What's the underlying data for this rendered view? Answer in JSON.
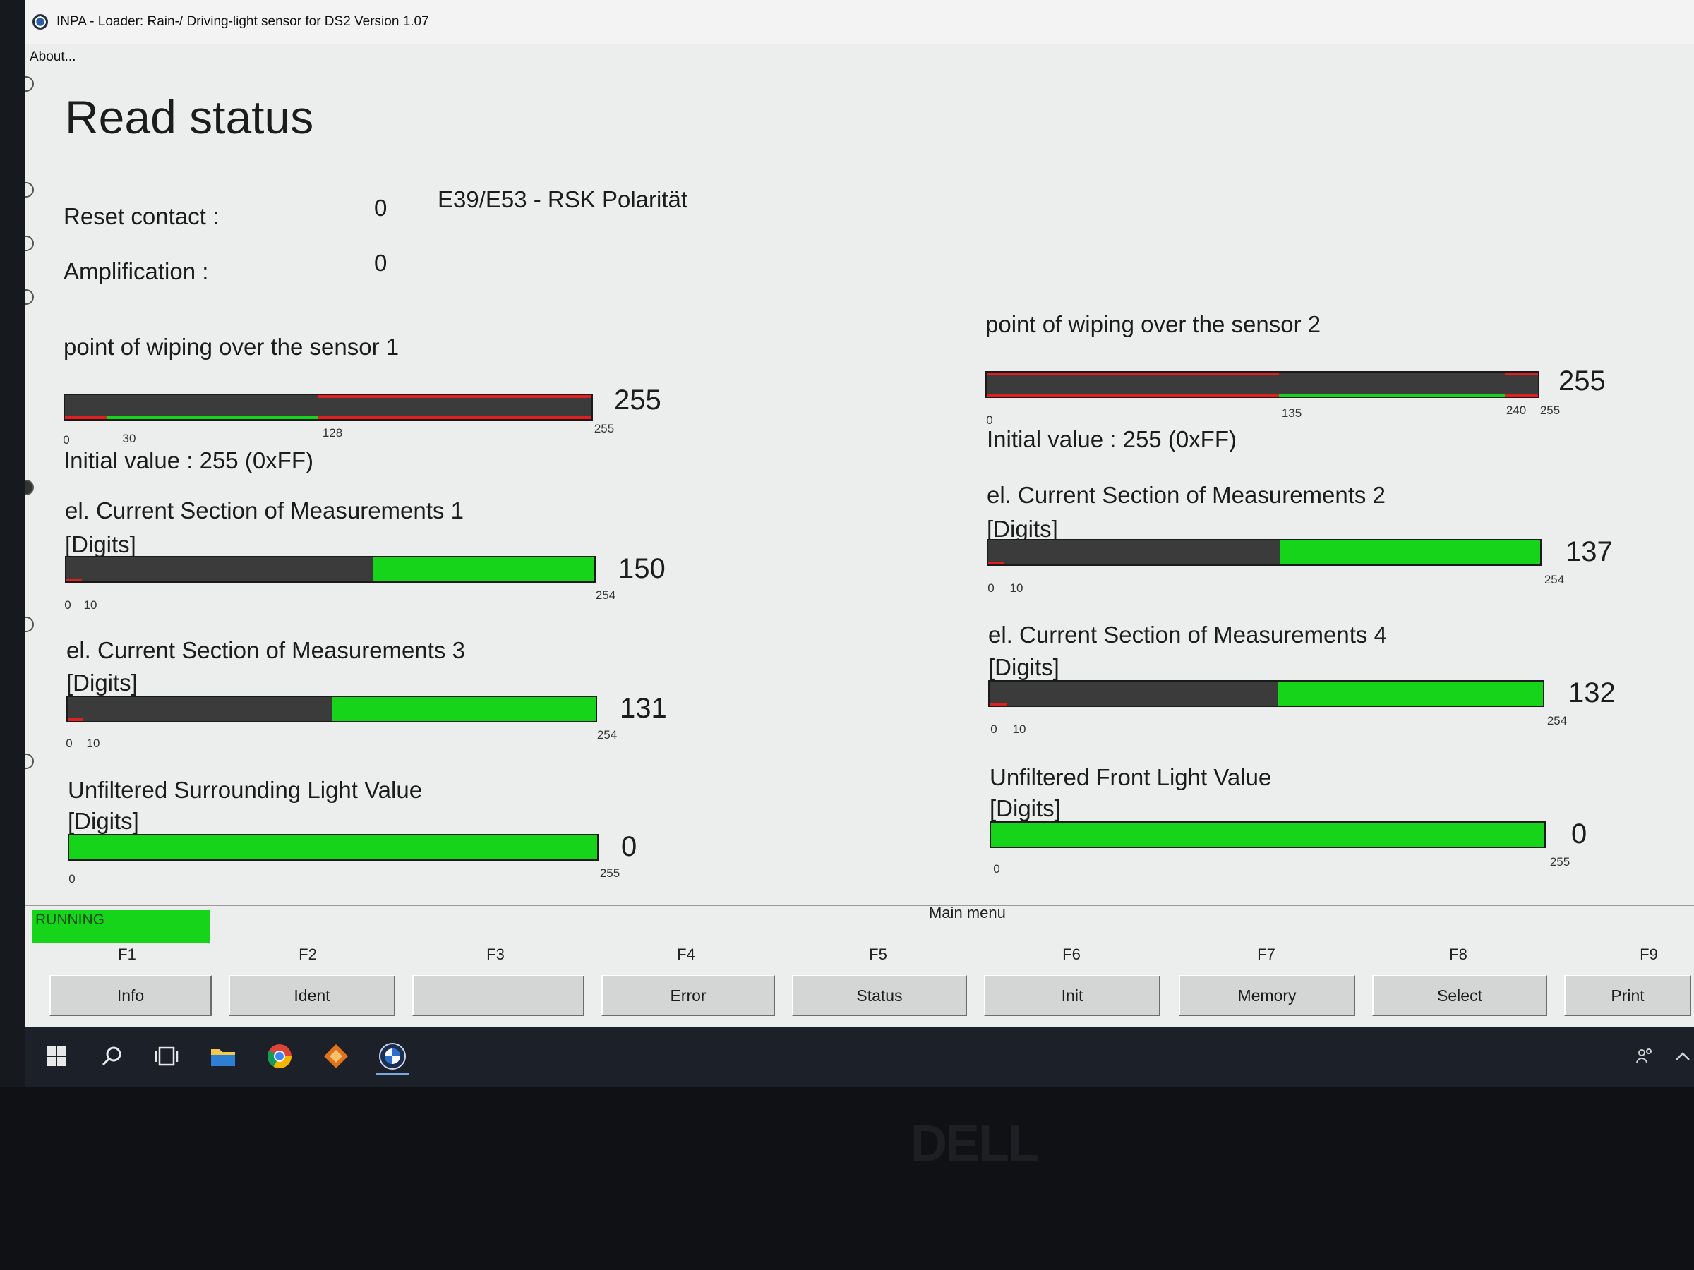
{
  "window": {
    "title": "INPA - Loader:  Rain-/ Driving-light sensor for DS2 Version 1.07",
    "menu": "About...",
    "heading": "Read status"
  },
  "status_fields": {
    "reset_label": "Reset contact :",
    "reset_value": "0",
    "reset_note": "E39/E53 - RSK Polarität",
    "amp_label": "Amplification :",
    "amp_value": "0"
  },
  "gauges": {
    "wiping1": {
      "title": "point of wiping over the sensor 1",
      "value": "255",
      "level": 1.0,
      "min_label": "0",
      "mark1": "30",
      "mark2": "128",
      "max_label": "255",
      "initial": "Initial value : 255 (0xFF)"
    },
    "wiping2": {
      "title": "point of wiping over the sensor 2",
      "value": "255",
      "level": 1.0,
      "min_label": "0",
      "mark1": "135",
      "mark2": "240",
      "max_label": "255",
      "initial": "Initial value : 255 (0xFF)"
    },
    "current1": {
      "title": "el. Current Section of Measurements 1",
      "unit": "[Digits]",
      "value": "150",
      "level": 0.58,
      "min_label": "0",
      "mark1": "10",
      "max_label": "254"
    },
    "current2": {
      "title": "el. Current Section of Measurements 2",
      "unit": "[Digits]",
      "value": "137",
      "level": 0.53,
      "min_label": "0",
      "mark1": "10",
      "max_label": "254"
    },
    "current3": {
      "title": "el. Current Section of Measurements 3",
      "unit": "[Digits]",
      "value": "131",
      "level": 0.5,
      "min_label": "0",
      "mark1": "10",
      "max_label": "254"
    },
    "current4": {
      "title": "el. Current Section of Measurements 4",
      "unit": "[Digits]",
      "value": "132",
      "level": 0.52,
      "min_label": "0",
      "mark1": "10",
      "max_label": "254"
    },
    "surround": {
      "title": "Unfiltered Surrounding Light Value",
      "unit": "[Digits]",
      "value": "0",
      "min_label": "0",
      "max_label": "255"
    },
    "front": {
      "title": "Unfiltered Front Light Value",
      "unit": "[Digits]",
      "value": "0",
      "min_label": "0",
      "max_label": "255"
    }
  },
  "statusbar": {
    "running": "RUNNING",
    "main_menu": "Main menu"
  },
  "fkeys": [
    {
      "key": "F1",
      "label": "Info"
    },
    {
      "key": "F2",
      "label": "Ident"
    },
    {
      "key": "F3",
      "label": ""
    },
    {
      "key": "F4",
      "label": "Error"
    },
    {
      "key": "F5",
      "label": "Status"
    },
    {
      "key": "F6",
      "label": "Init"
    },
    {
      "key": "F7",
      "label": "Memory"
    },
    {
      "key": "F8",
      "label": "Select"
    },
    {
      "key": "F9",
      "label": "Print"
    }
  ],
  "colors": {
    "green": "#15d41a",
    "red": "#e02020",
    "bar_dark": "#3b3b3b"
  },
  "taskbar": {
    "icons": [
      "windows-start-icon",
      "search-icon",
      "task-view-icon",
      "file-explorer-icon",
      "chrome-icon",
      "app-icon",
      "inpa-icon"
    ]
  },
  "bezel": {
    "brand": "DELL"
  }
}
